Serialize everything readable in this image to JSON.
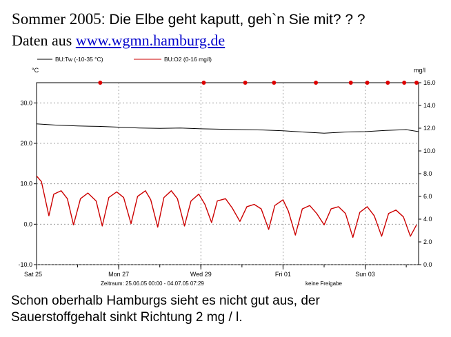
{
  "header": {
    "title_prefix": "Sommer 2005",
    "title_rest": ": Die Elbe geht kaputt, geh`n Sie mit? ? ?",
    "source_prefix": "Daten aus ",
    "source_link": "www.wgmn.hamburg.de"
  },
  "caption": {
    "line1": "Schon oberhalb Hamburgs sieht es nicht gut aus, der",
    "line2": "Sauerstoffgehalt sinkt Richtung 2 mg / l."
  },
  "chart_data": {
    "type": "line",
    "left_unit": "°C",
    "right_unit": "mg/l",
    "legend_tw": "BU:Tw (-10-35 °C)",
    "legend_o2": "BU:O2 (0-16 mg/l)",
    "period": "Zeitraum: 25.06.05 00:00 - 04.07.05 07:29",
    "status": "keine Freigabe",
    "x_labels": [
      "Sat 25",
      "Mon 27",
      "Wed 29",
      "Fri 01",
      "Sun 03"
    ],
    "x_positions_days": [
      0,
      2,
      4,
      6,
      8
    ],
    "xlim_days": [
      0,
      9.3
    ],
    "ylim_left": [
      -10,
      35
    ],
    "ylim_right": [
      0,
      16
    ],
    "left_ticks": [
      "30.0",
      "20.0",
      "10.0",
      "0.0",
      "-10.0"
    ],
    "left_tick_values": [
      30,
      20,
      10,
      0,
      -10
    ],
    "right_ticks": [
      "16.0",
      "14.0",
      "12.0",
      "10.0",
      "8.0",
      "6.0",
      "4.0",
      "2.0",
      "0.0"
    ],
    "right_tick_values": [
      16,
      14,
      12,
      10,
      8,
      6,
      4,
      2,
      0
    ],
    "colors": {
      "tw": "#000000",
      "o2": "#cc0000",
      "marker": "#dd0000",
      "grid": "#888888"
    },
    "series": [
      {
        "name": "BU:Tw (-10-35 °C)",
        "axis": "left",
        "x": [
          0,
          0.5,
          1,
          1.5,
          2,
          2.5,
          3,
          3.5,
          4,
          4.5,
          5,
          5.5,
          6,
          6.5,
          7,
          7.5,
          8,
          8.5,
          9,
          9.3
        ],
        "y": [
          24.8,
          24.5,
          24.3,
          24.2,
          24.0,
          23.8,
          23.7,
          23.8,
          23.6,
          23.5,
          23.4,
          23.3,
          23.1,
          22.8,
          22.5,
          22.8,
          22.9,
          23.2,
          23.4,
          22.9
        ]
      },
      {
        "name": "BU:O2 (0-16 mg/l)",
        "axis": "right",
        "x": [
          0,
          0.12,
          0.3,
          0.42,
          0.6,
          0.75,
          0.9,
          1.07,
          1.25,
          1.45,
          1.6,
          1.76,
          1.95,
          2.12,
          2.3,
          2.46,
          2.65,
          2.78,
          2.95,
          3.1,
          3.28,
          3.43,
          3.6,
          3.76,
          3.95,
          4.1,
          4.26,
          4.4,
          4.6,
          4.76,
          4.95,
          5.12,
          5.3,
          5.47,
          5.65,
          5.8,
          6.0,
          6.13,
          6.3,
          6.47,
          6.65,
          6.82,
          7.0,
          7.17,
          7.35,
          7.52,
          7.7,
          7.87,
          8.05,
          8.22,
          8.4,
          8.57,
          8.75,
          8.93,
          9.1,
          9.25
        ],
        "y": [
          7.8,
          7.3,
          4.3,
          6.2,
          6.5,
          5.8,
          3.5,
          5.8,
          6.3,
          5.6,
          3.4,
          5.9,
          6.4,
          5.9,
          3.6,
          6.0,
          6.5,
          5.7,
          3.3,
          5.9,
          6.5,
          5.8,
          3.4,
          5.6,
          6.2,
          5.3,
          3.7,
          5.6,
          5.8,
          5.0,
          3.8,
          5.1,
          5.3,
          4.9,
          3.1,
          5.2,
          5.7,
          4.7,
          2.6,
          4.9,
          5.2,
          4.5,
          3.5,
          4.9,
          5.1,
          4.5,
          2.4,
          4.6,
          5.1,
          4.3,
          2.5,
          4.5,
          4.8,
          4.2,
          2.5,
          3.5
        ]
      }
    ],
    "markers_o2": [
      {
        "x": 1.55,
        "y": 16
      },
      {
        "x": 4.07,
        "y": 16
      },
      {
        "x": 5.08,
        "y": 16
      },
      {
        "x": 5.78,
        "y": 16
      },
      {
        "x": 6.8,
        "y": 16
      },
      {
        "x": 7.65,
        "y": 16
      },
      {
        "x": 8.05,
        "y": 16
      },
      {
        "x": 8.55,
        "y": 16
      },
      {
        "x": 8.95,
        "y": 16
      },
      {
        "x": 9.25,
        "y": 16
      }
    ]
  }
}
